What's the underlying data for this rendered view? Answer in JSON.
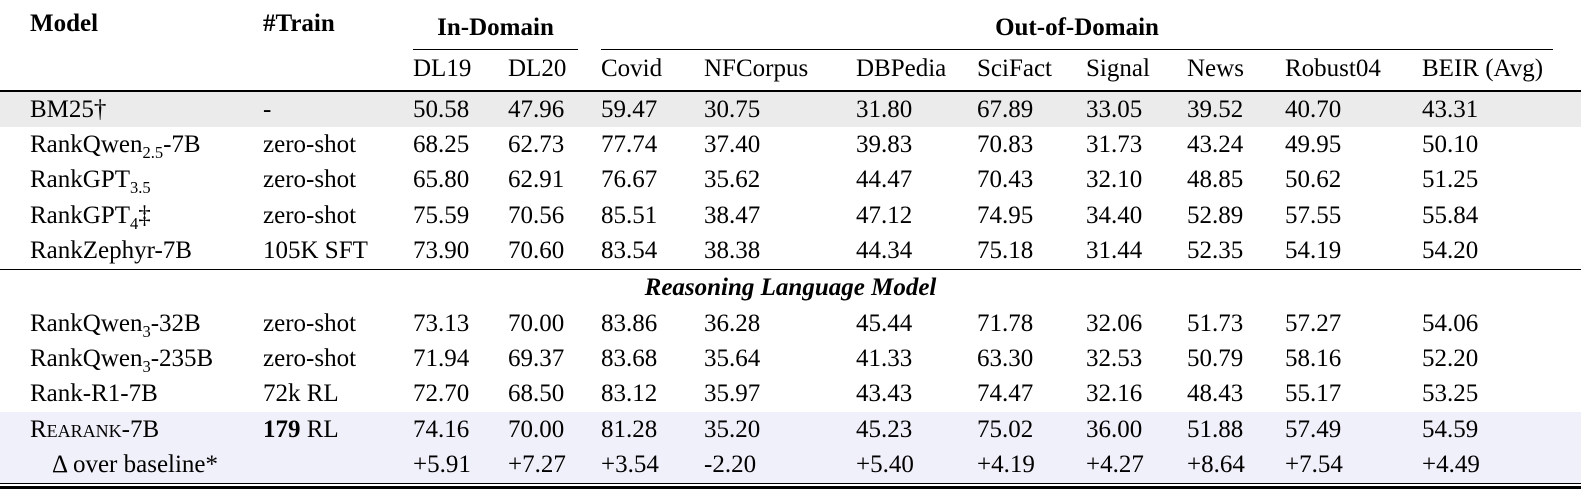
{
  "colors": {
    "highlight_gray": "#EBEBEB",
    "highlight_lavender": "#F0F0FA",
    "rule": "#000000",
    "background": "#FFFFFF"
  },
  "table": {
    "header": {
      "model": "Model",
      "train": "#Train",
      "groups": [
        {
          "label": "In-Domain",
          "span": 2
        },
        {
          "label": "Out-of-Domain",
          "span": 8
        }
      ],
      "subcolumns": [
        "DL19",
        "DL20",
        "Covid",
        "NFCorpus",
        "DBPedia",
        "SciFact",
        "Signal",
        "News",
        "Robust04",
        "BEIR (Avg)"
      ]
    },
    "groups": [
      {
        "rows": [
          {
            "model": "BM25†",
            "train": "-",
            "values": [
              "50.58",
              "47.96",
              "59.47",
              "30.75",
              "31.80",
              "67.89",
              "33.05",
              "39.52",
              "40.70",
              "43.31"
            ],
            "bg": "gray"
          },
          {
            "model": "RankQwen~2.5~-7B",
            "train": "zero-shot",
            "values": [
              "68.25",
              "62.73",
              "77.74",
              "37.40",
              "39.83",
              "70.83",
              "31.73",
              "43.24",
              "49.95",
              "50.10"
            ]
          },
          {
            "model": "RankGPT~3.5~",
            "train": "zero-shot",
            "values": [
              "65.80",
              "62.91",
              "76.67",
              "35.62",
              "44.47",
              "70.43",
              "32.10",
              "48.85",
              "50.62",
              "51.25"
            ]
          },
          {
            "model": "RankGPT~4~‡",
            "train": "zero-shot",
            "values": [
              "75.59",
              "70.56",
              "85.51",
              "38.47",
              "47.12",
              "74.95",
              "34.40",
              "52.89",
              "57.55",
              "55.84"
            ]
          },
          {
            "model": "RankZephyr-7B",
            "train": "105K SFT",
            "values": [
              "73.90",
              "70.60",
              "83.54",
              "38.38",
              "44.34",
              "75.18",
              "31.44",
              "52.35",
              "54.19",
              "54.20"
            ]
          }
        ]
      },
      {
        "label": "Reasoning Language Model",
        "rows": [
          {
            "model": "RankQwen~3~-32B",
            "train": "zero-shot",
            "values": [
              "73.13",
              "70.00",
              "83.86",
              "36.28",
              "45.44",
              "71.78",
              "32.06",
              "51.73",
              "57.27",
              "54.06"
            ]
          },
          {
            "model": "RankQwen~3~-235B",
            "train": "zero-shot",
            "values": [
              "71.94",
              "69.37",
              "83.68",
              "35.64",
              "41.33",
              "63.30",
              "32.53",
              "50.79",
              "58.16",
              "52.20"
            ]
          },
          {
            "model": "Rank-R1-7B",
            "train": "72k RL",
            "values": [
              "72.70",
              "68.50",
              "83.12",
              "35.97",
              "43.43",
              "74.47",
              "32.16",
              "48.43",
              "55.17",
              "53.25"
            ]
          },
          {
            "model": "Rearank-7B",
            "smallcaps": true,
            "train": "**179** RL",
            "values": [
              "74.16",
              "70.00",
              "81.28",
              "35.20",
              "45.23",
              "75.02",
              "36.00",
              "51.88",
              "57.49",
              "54.59"
            ],
            "bg": "lavender"
          },
          {
            "model": "Δ over baseline*",
            "indent": true,
            "train": "",
            "values": [
              "+5.91",
              "+7.27",
              "+3.54",
              "-2.20",
              "+5.40",
              "+4.19",
              "+4.27",
              "+8.64",
              "+7.54",
              "+4.49"
            ],
            "bg": "lavender"
          }
        ]
      }
    ]
  }
}
